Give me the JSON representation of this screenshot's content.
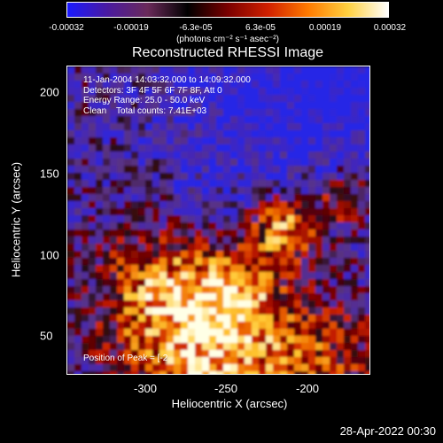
{
  "colorbar": {
    "ticks": [
      "-0.00032",
      "-0.00019",
      "-6.3e-05",
      "6.3e-05",
      "0.00019",
      "0.00032"
    ],
    "unit_text": "(photons cm⁻² s⁻¹ asec⁻²)",
    "colors": [
      "#1a1aff",
      "#4a1aa0",
      "#6a2a5a",
      "#000000",
      "#7a0000",
      "#d02000",
      "#ff7a00",
      "#ffd040",
      "#ffffff"
    ]
  },
  "title": "Reconstructed RHESSI Image",
  "info": {
    "line1": "11-Jan-2004 14:03:32.000 to 14:09:32.000",
    "line2": "Detectors: 3F 4F 5F 6F 7F 8F, Att 0",
    "line3": "Energy Range: 25.0 - 50.0 keV",
    "line4": "Clean    Total counts: 7.41E+03"
  },
  "peak_text": "Position of Peak = [-2",
  "axes": {
    "xlabel": "Heliocentric X (arcsec)",
    "ylabel": "Heliocentric Y (arcsec)",
    "xticks": [
      "-300",
      "-250",
      "-200"
    ],
    "yticks": [
      "200",
      "150",
      "100",
      "50"
    ]
  },
  "timestamp": "28-Apr-2022 00:30"
}
